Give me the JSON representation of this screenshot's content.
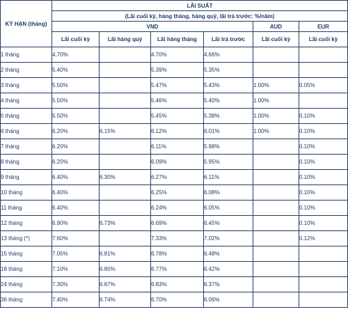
{
  "table": {
    "term_header": "KỲ HẠN (tháng)",
    "rate_header": "LÃI SUẤT",
    "rate_subheader": "(Lãi cuối kỳ, hàng tháng, hàng quý, lãi trả trước: %/năm)",
    "currencies": [
      "VND",
      "AUD",
      "EUR"
    ],
    "columns": [
      "Lãi cuối kỳ",
      "Lãi hàng quý",
      "Lãi hàng tháng",
      "Lãi trả trước",
      "Lãi cuối kỳ",
      "Lãi cuối kỳ"
    ],
    "rows": [
      {
        "term": "1 tháng",
        "cells": [
          "4.70%",
          "",
          "4.70%",
          "4.66%",
          "",
          ""
        ]
      },
      {
        "term": "2 tháng",
        "cells": [
          "5.40%",
          "",
          "5.39%",
          "5.35%",
          "",
          ""
        ]
      },
      {
        "term": "3 tháng",
        "cells": [
          "5.50%",
          "",
          "5.47%",
          "5.43%",
          "1.00%",
          "0.05%"
        ]
      },
      {
        "term": "4 tháng",
        "cells": [
          "5.50%",
          "",
          "5.46%",
          "5.40%",
          "1.00%",
          ""
        ]
      },
      {
        "term": "5 tháng",
        "cells": [
          "5.50%",
          "",
          "5.45%",
          "5.38%",
          "1.00%",
          "0.10%"
        ]
      },
      {
        "term": "6 tháng",
        "cells": [
          "6.20%",
          "6.15%",
          "6.12%",
          "6.01%",
          "1.00%",
          "0.10%"
        ]
      },
      {
        "term": "7 tháng",
        "cells": [
          "6.20%",
          "",
          "6.11%",
          "5.98%",
          "",
          "0.10%"
        ]
      },
      {
        "term": "8 tháng",
        "cells": [
          "6.20%",
          "",
          "6.09%",
          "5.95%",
          "",
          "0.10%"
        ]
      },
      {
        "term": "9 tháng",
        "cells": [
          "6.40%",
          "6.30%",
          "6.27%",
          "6.11%",
          "",
          "0.10%"
        ]
      },
      {
        "term": "10 tháng",
        "cells": [
          "6.40%",
          "",
          "6.25%",
          "6.08%",
          "",
          "0.10%"
        ]
      },
      {
        "term": "11 tháng",
        "cells": [
          "6.40%",
          "",
          "6.24%",
          "6.05%",
          "",
          "0.10%"
        ]
      },
      {
        "term": "12 tháng",
        "cells": [
          "6.90%",
          "6.73%",
          "6.69%",
          "6.45%",
          "",
          "0.10%"
        ]
      },
      {
        "term": "13 tháng (*)",
        "cells": [
          "7.60%",
          "",
          "7.33%",
          "7.02%",
          "",
          "0.12%"
        ]
      },
      {
        "term": "15 tháng",
        "cells": [
          "7.05%",
          "6.81%",
          "6.78%",
          "6.48%",
          "",
          ""
        ]
      },
      {
        "term": "18 tháng",
        "cells": [
          "7.10%",
          "6.80%",
          "6.77%",
          "6.42%",
          "",
          ""
        ]
      },
      {
        "term": "24 tháng",
        "cells": [
          "7.30%",
          "6.87%",
          "6.83%",
          "6.37%",
          "",
          ""
        ]
      },
      {
        "term": "36 tháng",
        "cells": [
          "7.40%",
          "6.74%",
          "6.70%",
          "6.06%",
          "",
          ""
        ]
      }
    ]
  }
}
